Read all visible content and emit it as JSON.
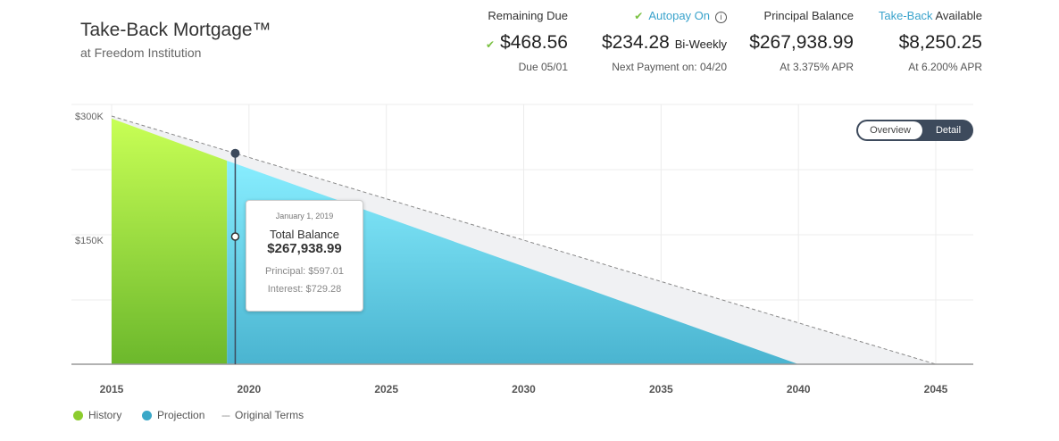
{
  "header": {
    "title": "Take-Back Mortgage™",
    "subtitle": "at Freedom Institution"
  },
  "stats": {
    "remaining": {
      "label": "Remaining Due",
      "value": "$468.56",
      "sub": "Due 05/01"
    },
    "autopay": {
      "label": "Autopay On",
      "value": "$234.28",
      "unit": "Bi-Weekly",
      "sub": "Next Payment on: 04/20"
    },
    "principal": {
      "label": "Principal Balance",
      "value": "$267,938.99",
      "sub": "At 3.375% APR"
    },
    "takeback": {
      "label_link": "Take-Back",
      "label_rest": "Available",
      "value": "$8,250.25",
      "sub": "At 6.200% APR"
    }
  },
  "toggle": {
    "overview": "Overview",
    "detail": "Detail",
    "selected": "Overview"
  },
  "tooltip": {
    "date": "January 1, 2019",
    "title": "Total Balance",
    "value": "$267,938.99",
    "principal": "Principal: $597.01",
    "interest": "Interest: $729.28"
  },
  "legend": {
    "history": "History",
    "projection": "Projection",
    "original": "Original Terms"
  },
  "colors": {
    "history": "#8ccc2e",
    "projection": "#3aa8c8",
    "accent": "#3aa3cc",
    "check": "#7ac142"
  },
  "chart_data": {
    "type": "area",
    "x_ticks": [
      "2015",
      "2020",
      "2025",
      "2030",
      "2035",
      "2040",
      "2045"
    ],
    "y_ticks": [
      "$300K",
      "$150K"
    ],
    "xlim": [
      2015,
      2045
    ],
    "ylim": [
      0,
      300000
    ],
    "series": [
      {
        "name": "History",
        "points": [
          [
            2015,
            297000
          ],
          [
            2019.2,
            246000
          ]
        ]
      },
      {
        "name": "Projection",
        "points": [
          [
            2019.2,
            246000
          ],
          [
            2040,
            0
          ]
        ]
      },
      {
        "name": "Original Terms",
        "points": [
          [
            2015,
            300000
          ],
          [
            2045,
            0
          ]
        ]
      }
    ],
    "marker_x": 2019.5
  }
}
